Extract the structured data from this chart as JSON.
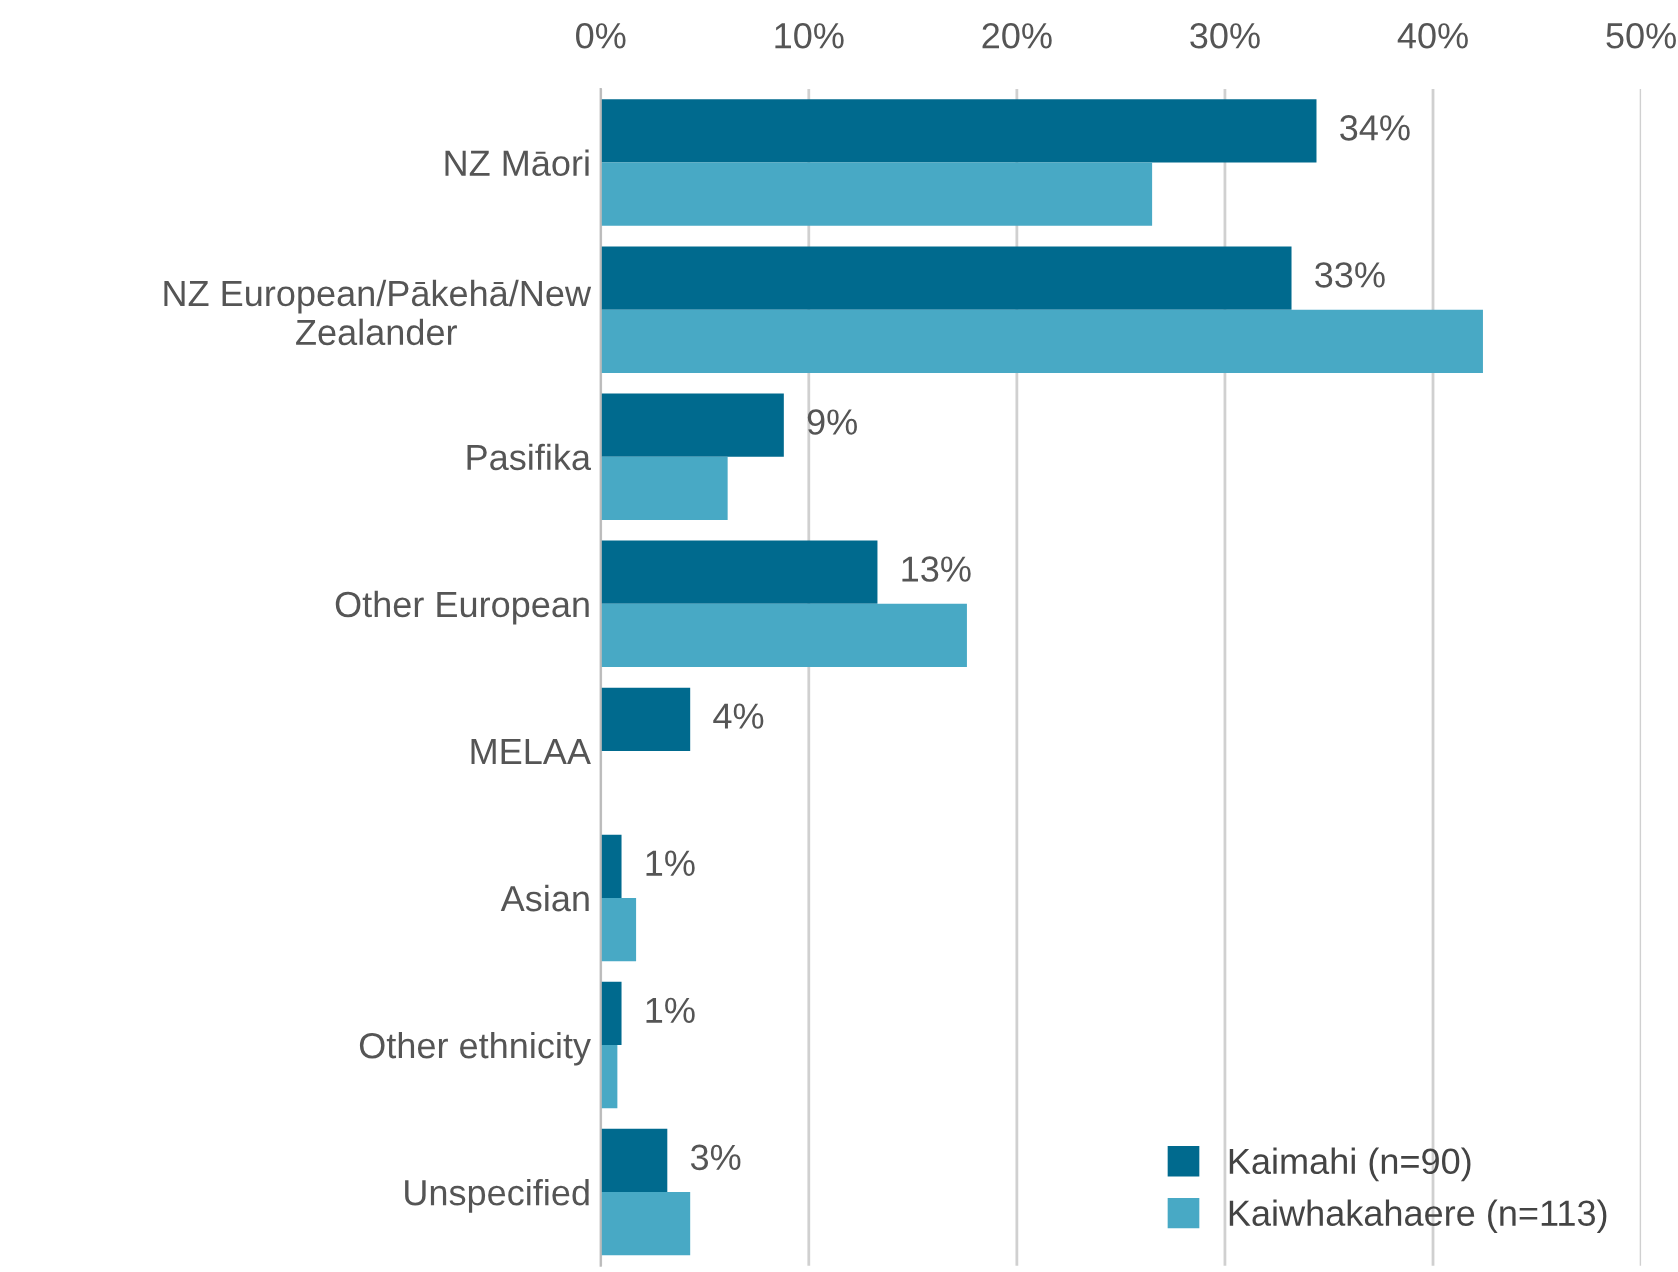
{
  "chart_data": {
    "type": "bar",
    "orientation": "horizontal",
    "categories": [
      "NZ Māori",
      "NZ European/Pākehā/New Zealander",
      "Pasifika",
      "Other European",
      "MELAA",
      "Asian",
      "Other ethnicity",
      "Unspecified"
    ],
    "series": [
      {
        "name": "Kaimahi (n=90)",
        "color": "#006a8e",
        "values": [
          34.4,
          33.2,
          8.8,
          13.3,
          4.3,
          1.0,
          1.0,
          3.2
        ],
        "value_labels": [
          "34%",
          "33%",
          "9%",
          "13%",
          "4%",
          "1%",
          "1%",
          "3%"
        ]
      },
      {
        "name": "Kaiwhakahaere (n=113)",
        "color": "#48a9c5",
        "values": [
          26.5,
          42.4,
          6.1,
          17.6,
          null,
          1.7,
          0.8,
          4.3
        ]
      }
    ],
    "xlim": [
      0,
      50
    ],
    "xticks": [
      {
        "value": 0,
        "label": "0%"
      },
      {
        "value": 10,
        "label": "10%"
      },
      {
        "value": 20,
        "label": "20%"
      },
      {
        "value": 30,
        "label": "30%"
      },
      {
        "value": 40,
        "label": "40%"
      },
      {
        "value": 50,
        "label": "50%"
      }
    ],
    "grid": "x",
    "legend": "bottom right"
  }
}
